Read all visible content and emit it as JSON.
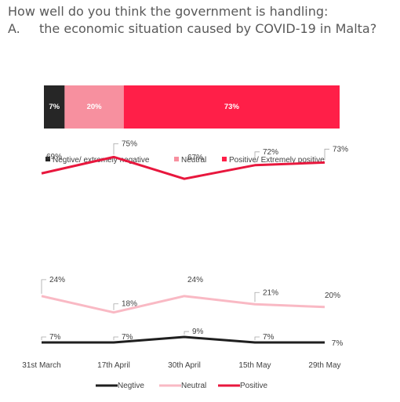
{
  "title": {
    "line1": "How well do you think the government is handling:",
    "line2_prefix": "A.",
    "line2_text": "the economic situation caused by COVID-19 in Malta?"
  },
  "chart_data": [
    {
      "type": "bar",
      "orientation": "horizontal",
      "stacked": true,
      "percent_stacked": true,
      "series": [
        {
          "name": "Negtive/ extremely negative",
          "values": [
            7
          ],
          "labels": [
            "7%"
          ],
          "color": "#262626"
        },
        {
          "name": "Neutral",
          "values": [
            20
          ],
          "labels": [
            "20%"
          ],
          "color": "#F7909F"
        },
        {
          "name": "Positive/ Extremely positive",
          "values": [
            73
          ],
          "labels": [
            "73%"
          ],
          "color": "#FF1F48"
        }
      ],
      "xlim": [
        0,
        100
      ],
      "legend": "bottom"
    },
    {
      "type": "line",
      "categories": [
        "31st March",
        "17th April",
        "30th April",
        "15th May",
        "29th May"
      ],
      "ylim": [
        0,
        80
      ],
      "grid": false,
      "legend": "bottom",
      "series": [
        {
          "name": "Negtive",
          "values": [
            7,
            7,
            9,
            7,
            7
          ],
          "labels": [
            "7%",
            "7%",
            "9%",
            "7%",
            "7%"
          ],
          "color": "#1F1F1F"
        },
        {
          "name": "Neutral",
          "values": [
            24,
            18,
            24,
            21,
            20
          ],
          "labels": [
            "24%",
            "18%",
            "24%",
            "21%",
            "20%"
          ],
          "color": "#F9B9C4"
        },
        {
          "name": "Positive",
          "values": [
            69,
            75,
            67,
            72,
            73
          ],
          "labels": [
            "69%",
            "75%",
            "67%",
            "72%",
            "73%"
          ],
          "color": "#E8173D"
        }
      ]
    }
  ]
}
